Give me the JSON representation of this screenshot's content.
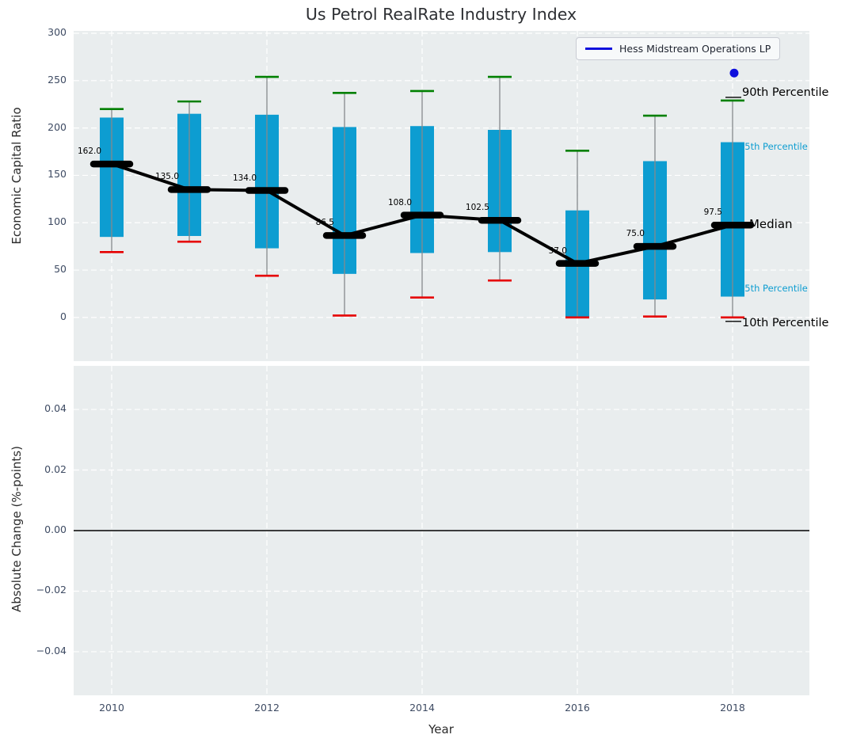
{
  "title": "Us Petrol RealRate Industry Index",
  "legend": {
    "label": "Hess Midstream Operations LP"
  },
  "colors": {
    "box": "#0d9dd1",
    "p90_cap": "#008000",
    "p10_cap": "#e60000",
    "median": "#000000",
    "company": "#0f10dd",
    "axes_bg": "#e9edee",
    "grid": "#ffffff",
    "whisker": "#85898c",
    "tick_text": "#3e4b63",
    "zero_line": "#000000"
  },
  "annotations": [
    {
      "label": "90th Percentile",
      "color": "#000000",
      "anchor": "p90",
      "size": 14.5
    },
    {
      "label": "75th Percentile",
      "color": "#0d9dd1",
      "anchor": "q3",
      "size": 11.5
    },
    {
      "label": "Median",
      "color": "#000000",
      "anchor": "median",
      "size": 15
    },
    {
      "label": "25th Percentile",
      "color": "#0d9dd1",
      "anchor": "q1",
      "size": 11.5
    },
    {
      "label": "10th Percentile",
      "color": "#000000",
      "anchor": "p10",
      "size": 14.5
    }
  ],
  "chart_data": [
    {
      "type": "boxplot",
      "title": "Us Petrol RealRate Industry Index",
      "xlabel": "Year",
      "ylabel": "Economic Capital Ratio",
      "categories": [
        2010,
        2011,
        2012,
        2013,
        2014,
        2015,
        2016,
        2017,
        2018
      ],
      "series": [
        {
          "name": "median",
          "values": [
            162.0,
            135.0,
            134.0,
            86.5,
            108.0,
            102.5,
            57.0,
            75.0,
            97.5
          ]
        },
        {
          "name": "q1_25th_pct",
          "values": [
            85,
            86,
            73,
            46,
            68,
            69,
            1,
            19,
            22
          ]
        },
        {
          "name": "q3_75th_pct",
          "values": [
            211,
            215,
            214,
            201,
            202,
            198,
            113,
            165,
            185
          ]
        },
        {
          "name": "p10_10th_pct",
          "values": [
            69,
            80,
            44,
            2,
            21,
            39,
            0,
            1,
            0
          ]
        },
        {
          "name": "p90_90th_pct",
          "values": [
            220,
            228,
            254,
            237,
            239,
            254,
            176,
            213,
            229
          ]
        }
      ],
      "point_series": {
        "name": "Hess Midstream Operations LP",
        "x": 2018,
        "y": 258
      },
      "xticks": {
        "values": [
          2010,
          2012,
          2014,
          2016,
          2018
        ],
        "labels": [
          "2010",
          "2012",
          "2014",
          "2016",
          "2018"
        ]
      },
      "yticks": {
        "values": [
          300,
          250,
          200,
          150,
          100,
          50,
          0
        ],
        "labels": [
          "300",
          "250",
          "200",
          "150",
          "100",
          "50",
          "0"
        ]
      },
      "xlim": [
        2009.51,
        2018.99
      ],
      "ylim": [
        -46.1,
        302.5
      ],
      "grid": true,
      "legend_position": "upper right"
    },
    {
      "type": "line",
      "xlabel": "Year",
      "ylabel": "Absolute Change (%-points)",
      "series": [],
      "zero_line": 0.0,
      "xticks": {
        "values": [
          2010,
          2012,
          2014,
          2016,
          2018
        ],
        "labels": [
          "2010",
          "2012",
          "2014",
          "2016",
          "2018"
        ]
      },
      "yticks": {
        "values": [
          0.04,
          0.02,
          0,
          -0.02,
          -0.04
        ],
        "labels": [
          "0.04",
          "0.02",
          "0.00",
          "−0.02",
          "−0.04"
        ]
      },
      "xlim": [
        2009.51,
        2018.99
      ],
      "ylim": [
        -0.0544,
        0.0544
      ],
      "grid": true
    }
  ]
}
